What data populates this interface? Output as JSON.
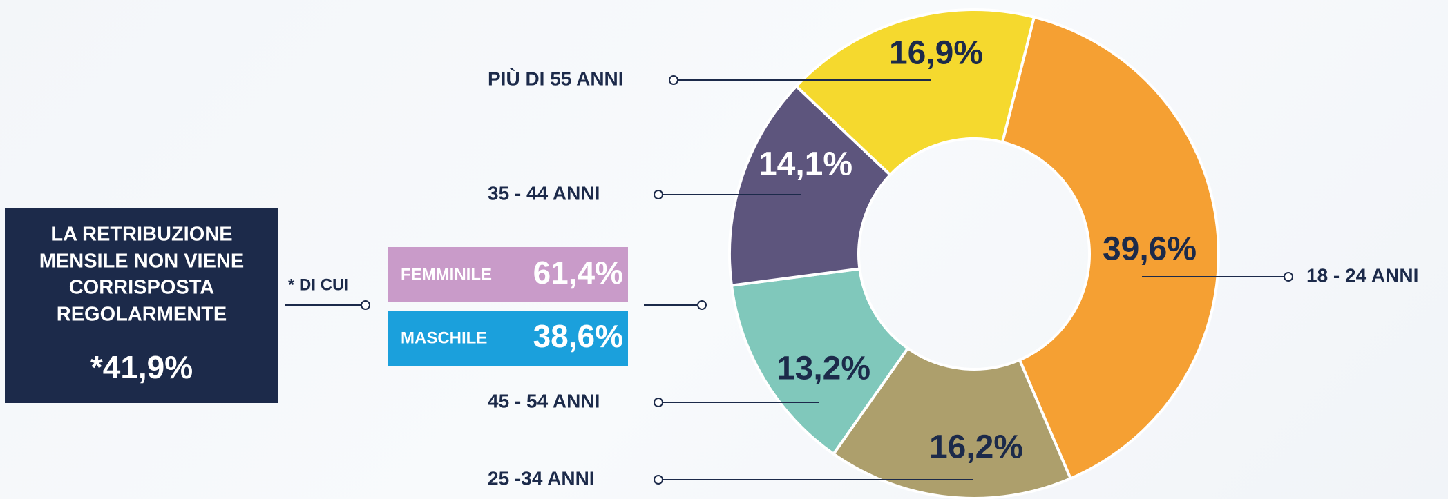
{
  "chart_data": {
    "type": "pie",
    "donut": true,
    "categories": [
      "18 - 24 ANNI",
      "25 -34 ANNI",
      "45 - 54 ANNI",
      "35 - 44 ANNI",
      "PIÙ DI 55 ANNI"
    ],
    "values": [
      39.6,
      16.2,
      13.2,
      14.1,
      16.9
    ],
    "value_labels": [
      "39,6%",
      "16,2%",
      "13,2%",
      "14,1%",
      "16,9%"
    ],
    "colors": [
      "#f5a033",
      "#ad9f6c",
      "#80c8bb",
      "#5d557d",
      "#f5d92e"
    ]
  },
  "callout": {
    "title_lines": [
      "LA RETRIBUZIONE",
      "MENSILE NON VIENE",
      "CORRISPOSTA",
      "REGOLARMENTE"
    ],
    "value": 41.9,
    "value_label": "*41,9%"
  },
  "breakdown": {
    "note": "* DI CUI",
    "categories": [
      "FEMMINILE",
      "MASCHILE"
    ],
    "values": [
      61.4,
      38.6
    ],
    "value_labels": [
      "61,4%",
      "38,6%"
    ],
    "colors": [
      "#c99bc9",
      "#1ba0dc"
    ]
  }
}
